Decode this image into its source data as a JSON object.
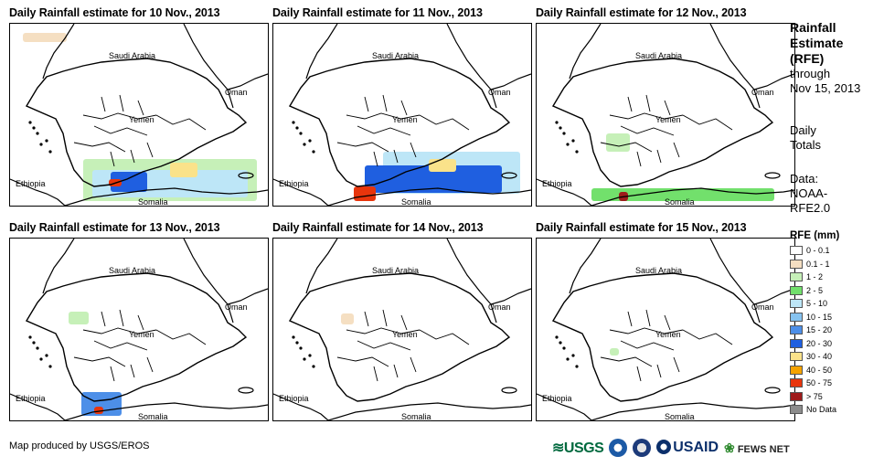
{
  "panels": [
    {
      "title": "Daily Rainfall estimate for 10 Nov., 2013",
      "date": "10 Nov.",
      "rain_cells": [
        {
          "intensity": "0.1-1",
          "area": "northwest corner"
        },
        {
          "intensity": "1-2",
          "area": "Gulf of Aden"
        },
        {
          "intensity": "5-10",
          "area": "Gulf of Aden"
        },
        {
          "intensity": "20-30",
          "area": "Gulf of Aden"
        },
        {
          "intensity": "30-40",
          "area": "Gulf of Aden"
        },
        {
          "intensity": "50-75",
          "area": "Gulf of Aden"
        }
      ]
    },
    {
      "title": "Daily Rainfall estimate for 11 Nov., 2013",
      "date": "11 Nov.",
      "rain_cells": [
        {
          "intensity": "5-10",
          "area": "Gulf of Aden"
        },
        {
          "intensity": "20-30",
          "area": "Gulf of Aden"
        },
        {
          "intensity": "30-40",
          "area": "Gulf of Aden"
        },
        {
          "intensity": "50-75",
          "area": "southwest Yemen coast"
        }
      ]
    },
    {
      "title": "Daily Rainfall estimate for 12 Nov., 2013",
      "date": "12 Nov.",
      "rain_cells": [
        {
          "intensity": "1-2",
          "area": "western Yemen"
        },
        {
          "intensity": "2-5",
          "area": "Gulf of Aden"
        },
        {
          "intensity": "> 75",
          "area": "southwest Yemen coast"
        }
      ]
    },
    {
      "title": "Daily Rainfall estimate for 13 Nov., 2013",
      "date": "13 Nov.",
      "rain_cells": [
        {
          "intensity": "1-2",
          "area": "western Yemen"
        },
        {
          "intensity": "15-20",
          "area": "Bab el-Mandeb"
        },
        {
          "intensity": "50-75",
          "area": "southwest Yemen coast"
        }
      ]
    },
    {
      "title": "Daily Rainfall estimate for 14 Nov., 2013",
      "date": "14 Nov.",
      "rain_cells": [
        {
          "intensity": "0.1-1",
          "area": "western Yemen"
        }
      ]
    },
    {
      "title": "Daily Rainfall estimate for 15 Nov., 2013",
      "date": "15 Nov.",
      "rain_cells": [
        {
          "intensity": "1-2",
          "area": "western Yemen"
        }
      ]
    }
  ],
  "map_labels": {
    "saudi_arabia": "Saudi Arabia",
    "oman": "Oman",
    "yemen": "Yemen",
    "ethiopia": "Ethiopia",
    "somalia": "Somalia"
  },
  "sidebar": {
    "title_line1": "Rainfall",
    "title_line2": "Estimate",
    "title_line3": "(RFE)",
    "through": "through",
    "through_date": "Nov 15, 2013",
    "totals_line1": "Daily",
    "totals_line2": "Totals",
    "data_line1": "Data:",
    "data_line2": "NOAA-",
    "data_line3": "RFE2.0"
  },
  "legend": {
    "title": "RFE (mm)",
    "items": [
      {
        "label": "0 - 0.1",
        "color": "#ffffff"
      },
      {
        "label": "0.1 - 1",
        "color": "#f5dfc2"
      },
      {
        "label": "1 - 2",
        "color": "#c6f0b8"
      },
      {
        "label": "2 - 5",
        "color": "#72e06c"
      },
      {
        "label": "5 - 10",
        "color": "#bde6f7"
      },
      {
        "label": "10 - 15",
        "color": "#86c3f0"
      },
      {
        "label": "15 - 20",
        "color": "#4d8fe8"
      },
      {
        "label": "20 - 30",
        "color": "#1f5fe0"
      },
      {
        "label": "30 - 40",
        "color": "#fae28a"
      },
      {
        "label": "40 - 50",
        "color": "#f5a300"
      },
      {
        "label": "50 - 75",
        "color": "#e8350c"
      },
      {
        "label": "> 75",
        "color": "#9e1b1b"
      },
      {
        "label": "No Data",
        "color": "#8c8c8c"
      }
    ]
  },
  "footer": {
    "credit": "Map produced by USGS/EROS"
  },
  "logos": {
    "usgs": "USGS",
    "usaid": "USAID",
    "fews": "FEWS NET"
  }
}
